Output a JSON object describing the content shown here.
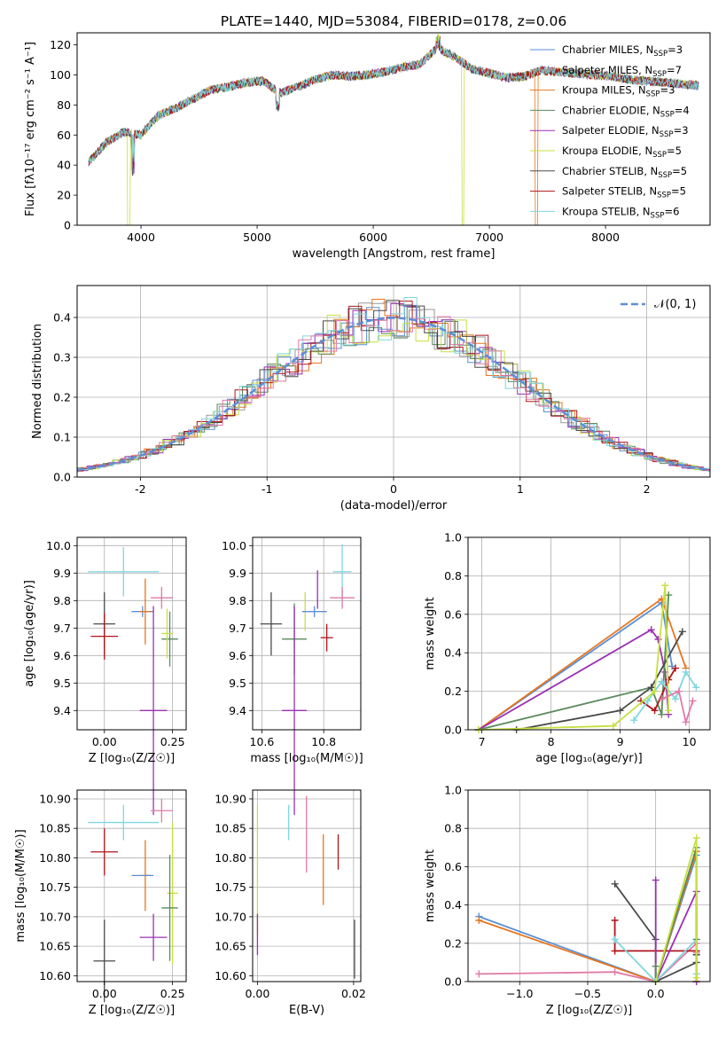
{
  "colors": {
    "Chabrier MILES": "#5b8fd6",
    "Salpeter MILES": "#999999",
    "Kroupa MILES": "#e8761e",
    "Chabrier ELODIE": "#5a8a5c",
    "Salpeter ELODIE": "#9b30b5",
    "Kroupa ELODIE": "#c6e040",
    "Chabrier STELIB": "#4a4a4a",
    "Salpeter STELIB": "#b0151c",
    "Kroupa STELIB": "#7fd6e0",
    "pink": "#e07aa8",
    "normal": "#5b8fd6"
  },
  "chart_data": [
    {
      "id": "spectrum",
      "type": "line",
      "title": "PLATE=1440, MJD=53084, FIBERID=0178, z=0.06",
      "xlabel": "wavelength [Angstrom, rest frame]",
      "ylabel": "Flux [fλ10⁻¹⁷ erg cm⁻² s⁻¹ A⁻¹]",
      "xlim": [
        3450,
        8900
      ],
      "ylim": [
        0,
        128
      ],
      "xticks": [
        4000,
        5000,
        6000,
        7000,
        8000
      ],
      "yticks": [
        0,
        20,
        40,
        60,
        80,
        100,
        120
      ],
      "legend_position": "top-right",
      "legend": [
        {
          "name": "Chabrier MILES, N",
          "sub": "SSP",
          "suffix": "=3"
        },
        {
          "name": "Salpeter MILES, N",
          "sub": "SSP",
          "suffix": "=7"
        },
        {
          "name": "Kroupa MILES, N",
          "sub": "SSP",
          "suffix": "=3"
        },
        {
          "name": "Chabrier ELODIE, N",
          "sub": "SSP",
          "suffix": "=4"
        },
        {
          "name": "Salpeter ELODIE, N",
          "sub": "SSP",
          "suffix": "=3"
        },
        {
          "name": "Kroupa ELODIE, N",
          "sub": "SSP",
          "suffix": "=5"
        },
        {
          "name": "Chabrier STELIB, N",
          "sub": "SSP",
          "suffix": "=5"
        },
        {
          "name": "Salpeter STELIB, N",
          "sub": "SSP",
          "suffix": "=5"
        },
        {
          "name": "Kroupa STELIB, N",
          "sub": "SSP",
          "suffix": "=6"
        }
      ],
      "x": [
        3550,
        3700,
        3850,
        4000,
        4150,
        4300,
        4450,
        4600,
        4750,
        4900,
        5050,
        5200,
        5350,
        5500,
        5650,
        5800,
        5950,
        6100,
        6250,
        6400,
        6550,
        6700,
        6850,
        7000,
        7150,
        7300,
        7450,
        7600,
        7750,
        7900,
        8050,
        8200,
        8350,
        8500,
        8650,
        8800
      ],
      "y": [
        42,
        55,
        62,
        60,
        73,
        78,
        84,
        90,
        92,
        95,
        96,
        88,
        92,
        97,
        100,
        99,
        100,
        102,
        105,
        107,
        118,
        112,
        104,
        101,
        98,
        99,
        103,
        102,
        101,
        100,
        99,
        97,
        96,
        95,
        94,
        93
      ]
    },
    {
      "id": "residuals",
      "type": "histogram",
      "xlabel": "(data-model)/error",
      "ylabel": "Normed distribution",
      "xlim": [
        -2.5,
        2.5
      ],
      "ylim": [
        0,
        0.48
      ],
      "xticks": [
        -2,
        -1,
        0,
        1,
        2
      ],
      "yticks": [
        0.0,
        0.1,
        0.2,
        0.3,
        0.4
      ],
      "legend_position": "top-right",
      "legend": [
        {
          "name": "𝒩(0, 1)"
        }
      ],
      "bin_width": 0.1
    },
    {
      "id": "age_vs_Z",
      "type": "scatter",
      "xlabel": "Z [log₁₀(Z/Z☉)]",
      "ylabel": "age  [log₁₀(age/yr)]",
      "xlim": [
        -0.1,
        0.3
      ],
      "ylim": [
        9.33,
        10.03
      ],
      "xticks": [
        0.0,
        0.25
      ],
      "xticklabels": [
        "0.00",
        "0.25"
      ],
      "yticks": [
        9.4,
        9.5,
        9.6,
        9.7,
        9.8,
        9.9,
        10.0
      ],
      "points": [
        {
          "c": "Chabrier MILES",
          "x": 0.14,
          "y": 9.76,
          "ex": 0.04,
          "ey": 0.02
        },
        {
          "c": "Kroupa MILES",
          "x": 0.15,
          "y": 9.76,
          "ex": 0.02,
          "ey": 0.12
        },
        {
          "c": "Kroupa STELIB",
          "x": 0.07,
          "y": 9.905,
          "ex": 0.13,
          "ey": 0.09
        },
        {
          "c": "Chabrier STELIB",
          "x": 0.0,
          "y": 9.715,
          "ex": 0.04,
          "ey": 0.115
        },
        {
          "c": "Salpeter STELIB",
          "x": 0.0,
          "y": 9.67,
          "ex": 0.05,
          "ey": 0.085
        },
        {
          "c": "Salpeter ELODIE",
          "x": 0.18,
          "y": 9.4,
          "ex": 0.05,
          "ey": 0.38
        },
        {
          "c": "pink",
          "x": 0.21,
          "y": 9.81,
          "ex": 0.04,
          "ey": 0.04
        },
        {
          "c": "Chabrier ELODIE",
          "x": 0.24,
          "y": 9.66,
          "ex": 0.03,
          "ey": 0.1
        },
        {
          "c": "Kroupa ELODIE",
          "x": 0.23,
          "y": 9.68,
          "ex": 0.02,
          "ey": 0.09
        }
      ]
    },
    {
      "id": "age_vs_mass",
      "type": "scatter",
      "xlabel": "mass [log₁₀(M/M☉)]",
      "xlim": [
        10.57,
        10.92
      ],
      "ylim": [
        9.33,
        10.03
      ],
      "xticks": [
        10.6,
        10.8
      ],
      "yticks": [
        9.4,
        9.5,
        9.6,
        9.7,
        9.8,
        9.9,
        10.0
      ],
      "points": [
        {
          "c": "Kroupa STELIB",
          "x": 10.86,
          "y": 9.905,
          "ex": 0.03,
          "ey": 0.1
        },
        {
          "c": "Salpeter ELODIE",
          "x": 10.78,
          "y": 9.84,
          "ex": 0.0,
          "ey": 0.07
        },
        {
          "c": "pink",
          "x": 10.86,
          "y": 9.81,
          "ex": 0.04,
          "ey": 0.04
        },
        {
          "c": "Kroupa ELODIE",
          "x": 10.74,
          "y": 9.76,
          "ex": 0.0,
          "ey": 0.07
        },
        {
          "c": "Chabrier MILES",
          "x": 10.77,
          "y": 9.76,
          "ex": 0.04,
          "ey": 0.02
        },
        {
          "c": "Chabrier STELIB",
          "x": 10.63,
          "y": 9.715,
          "ex": 0.035,
          "ey": 0.115
        },
        {
          "c": "Chabrier ELODIE",
          "x": 10.705,
          "y": 9.66,
          "ex": 0.04,
          "ey": 0.13
        },
        {
          "c": "Salpeter STELIB",
          "x": 10.81,
          "y": 9.665,
          "ex": 0.02,
          "ey": 0.05
        },
        {
          "c": "Salpeter ELODIE",
          "x": 10.705,
          "y": 9.4,
          "ex": 0.04,
          "ey": 0.38
        }
      ]
    },
    {
      "id": "mass_weight_vs_age",
      "type": "line",
      "xlabel": "age  [log₁₀(age/yr)]",
      "ylabel": "mass weight",
      "xlim": [
        6.8,
        10.3
      ],
      "ylim": [
        0,
        1.0
      ],
      "xticks": [
        7,
        8,
        9,
        10
      ],
      "yticks": [
        0.0,
        0.2,
        0.4,
        0.6,
        0.8,
        1.0
      ],
      "series": [
        {
          "c": "Chabrier MILES",
          "x": [
            6.95,
            9.6,
            9.75
          ],
          "y": [
            0.0,
            0.66,
            0.33
          ]
        },
        {
          "c": "Kroupa MILES",
          "x": [
            6.95,
            9.6,
            9.95
          ],
          "y": [
            0.0,
            0.68,
            0.32
          ]
        },
        {
          "c": "Salpeter ELODIE",
          "x": [
            6.95,
            9.45,
            9.55,
            9.65,
            9.7
          ],
          "y": [
            0.0,
            0.52,
            0.47,
            0.3,
            0.08
          ]
        },
        {
          "c": "Chabrier ELODIE",
          "x": [
            6.95,
            9.45,
            9.6,
            9.7
          ],
          "y": [
            0.0,
            0.22,
            0.08,
            0.7
          ]
        },
        {
          "c": "Chabrier STELIB",
          "x": [
            7.5,
            9.0,
            9.45,
            9.9
          ],
          "y": [
            0.0,
            0.1,
            0.22,
            0.51
          ]
        },
        {
          "c": "Salpeter STELIB",
          "x": [
            9.3,
            9.5,
            9.7,
            9.8
          ],
          "y": [
            0.15,
            0.1,
            0.26,
            0.32
          ]
        },
        {
          "c": "Kroupa STELIB",
          "x": [
            9.2,
            9.4,
            9.6,
            9.8,
            9.95,
            10.1
          ],
          "y": [
            0.05,
            0.15,
            0.25,
            0.16,
            0.3,
            0.22
          ]
        },
        {
          "c": "Kroupa ELODIE",
          "x": [
            6.95,
            8.9,
            9.5,
            9.65,
            9.7
          ],
          "y": [
            0.0,
            0.02,
            0.2,
            0.75,
            0.1
          ]
        },
        {
          "c": "pink",
          "x": [
            9.6,
            9.85,
            9.95,
            10.05
          ],
          "y": [
            0.16,
            0.2,
            0.04,
            0.15
          ]
        }
      ]
    },
    {
      "id": "mass_vs_Z",
      "type": "scatter",
      "xlabel": "Z [log₁₀(Z/Z☉)]",
      "ylabel": "mass [log₁₀(M/M☉)]",
      "xlim": [
        -0.1,
        0.3
      ],
      "ylim": [
        10.59,
        10.915
      ],
      "xticks": [
        0.0,
        0.25
      ],
      "xticklabels": [
        "0.00",
        "0.25"
      ],
      "yticks": [
        10.6,
        10.65,
        10.7,
        10.75,
        10.8,
        10.85,
        10.9
      ],
      "yticklabels": [
        "10.60",
        "10.65",
        "10.70",
        "10.75",
        "10.80",
        "10.85",
        "10.90"
      ],
      "points": [
        {
          "c": "pink",
          "x": 0.21,
          "y": 10.88,
          "ex": 0.04,
          "ey": 0.02
        },
        {
          "c": "Kroupa STELIB",
          "x": 0.07,
          "y": 10.86,
          "ex": 0.13,
          "ey": 0.03
        },
        {
          "c": "Salpeter STELIB",
          "x": 0.0,
          "y": 10.81,
          "ex": 0.05,
          "ey": 0.04
        },
        {
          "c": "Kroupa MILES",
          "x": 0.15,
          "y": 10.77,
          "ex": 0.02,
          "ey": 0.06
        },
        {
          "c": "Chabrier MILES",
          "x": 0.14,
          "y": 10.77,
          "ex": 0.04,
          "ey": 0.0
        },
        {
          "c": "Kroupa ELODIE",
          "x": 0.25,
          "y": 10.74,
          "ex": 0.02,
          "ey": 0.12
        },
        {
          "c": "Chabrier ELODIE",
          "x": 0.24,
          "y": 10.715,
          "ex": 0.03,
          "ey": 0.09
        },
        {
          "c": "Salpeter ELODIE",
          "x": 0.18,
          "y": 10.665,
          "ex": 0.05,
          "ey": 0.04
        },
        {
          "c": "Chabrier STELIB",
          "x": 0.0,
          "y": 10.625,
          "ex": 0.04,
          "ey": 0.07
        }
      ]
    },
    {
      "id": "mass_vs_EBV",
      "type": "scatter",
      "xlabel": "E(B-V)",
      "xlim": [
        -0.001,
        0.0215
      ],
      "ylim": [
        10.59,
        10.915
      ],
      "xticks": [
        0.0,
        0.02
      ],
      "xticklabels": [
        "0.00",
        "0.02"
      ],
      "yticks": [
        10.6,
        10.65,
        10.7,
        10.75,
        10.8,
        10.85,
        10.9
      ],
      "yticklabels": [
        "10.60",
        "10.65",
        "10.70",
        "10.75",
        "10.80",
        "10.85",
        "10.90"
      ],
      "points": [
        {
          "c": "Kroupa ELODIE",
          "x": 0.0,
          "y": 10.78,
          "ex": 0,
          "ey": 0.11
        },
        {
          "c": "Salpeter ELODIE",
          "x": 0.0,
          "y": 10.67,
          "ex": 0,
          "ey": 0.035
        },
        {
          "c": "Kroupa STELIB",
          "x": 0.0065,
          "y": 10.86,
          "ex": 0,
          "ey": 0.03
        },
        {
          "c": "pink",
          "x": 0.0102,
          "y": 10.84,
          "ex": 0,
          "ey": 0.065
        },
        {
          "c": "Kroupa MILES",
          "x": 0.0137,
          "y": 10.78,
          "ex": 0,
          "ey": 0.06
        },
        {
          "c": "Salpeter STELIB",
          "x": 0.0168,
          "y": 10.81,
          "ex": 0,
          "ey": 0.03
        },
        {
          "c": "Chabrier STELIB",
          "x": 0.0202,
          "y": 10.645,
          "ex": 0,
          "ey": 0.05
        }
      ]
    },
    {
      "id": "mass_weight_vs_Z",
      "type": "line",
      "xlabel": "Z [log₁₀(Z/Z☉)]",
      "ylabel": "mass weight",
      "xlim": [
        -1.38,
        0.4
      ],
      "ylim": [
        0,
        1.0
      ],
      "xticks": [
        -1.0,
        -0.5,
        0.0
      ],
      "xticklabels": [
        "−1.0",
        "−0.5",
        "0.0"
      ],
      "yticks": [
        0.0,
        0.2,
        0.4,
        0.6,
        0.8,
        1.0
      ],
      "series": [
        {
          "c": "Chabrier MILES",
          "x": [
            -1.3,
            0.0,
            0.3
          ],
          "y": [
            0.34,
            0.0,
            0.66
          ]
        },
        {
          "c": "Kroupa MILES",
          "x": [
            -1.3,
            0.0,
            0.3,
            0.3
          ],
          "y": [
            0.32,
            0.0,
            0.68,
            0.0
          ]
        },
        {
          "c": "pink",
          "x": [
            -1.3,
            -0.3,
            0.0,
            0.3,
            0.3
          ],
          "y": [
            0.04,
            0.05,
            0.0,
            0.2,
            0.15
          ]
        },
        {
          "c": "Chabrier STELIB",
          "x": [
            -0.3,
            0.0,
            0.0,
            0.3,
            0.3
          ],
          "y": [
            0.51,
            0.22,
            0.0,
            0.1,
            0.14
          ]
        },
        {
          "c": "Salpeter STELIB",
          "x": [
            -0.3,
            -0.3,
            0.3
          ],
          "y": [
            0.32,
            0.16,
            0.16
          ]
        },
        {
          "c": "Salpeter ELODIE",
          "x": [
            0.0,
            0.0,
            0.3,
            0.3
          ],
          "y": [
            0.53,
            0.0,
            0.47,
            0.0
          ]
        },
        {
          "c": "Kroupa STELIB",
          "x": [
            -0.3,
            0.0,
            0.3,
            0.3
          ],
          "y": [
            0.22,
            0.0,
            0.22,
            0.04
          ]
        },
        {
          "c": "Chabrier ELODIE",
          "x": [
            0.0,
            0.0,
            0.3,
            0.3
          ],
          "y": [
            0.08,
            0.0,
            0.7,
            0.22
          ]
        },
        {
          "c": "Kroupa ELODIE",
          "x": [
            0.0,
            0.3,
            0.3
          ],
          "y": [
            0.0,
            0.75,
            0.02
          ]
        }
      ]
    }
  ]
}
